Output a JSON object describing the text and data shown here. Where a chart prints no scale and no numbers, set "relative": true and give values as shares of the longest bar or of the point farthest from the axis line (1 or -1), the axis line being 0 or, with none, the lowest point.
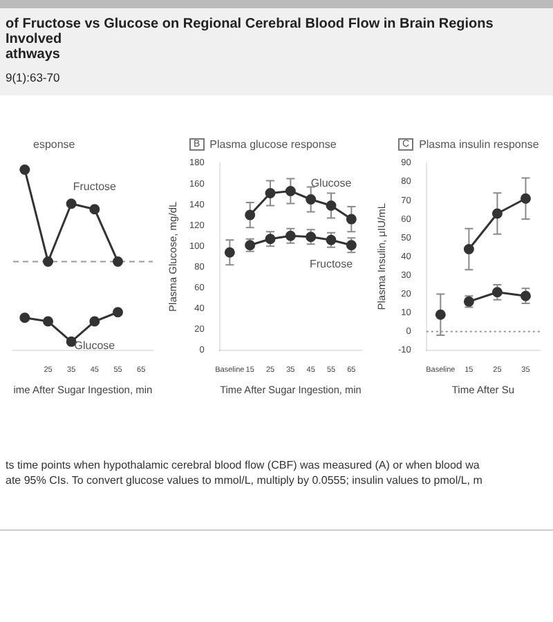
{
  "chart_data": [
    {
      "type": "other",
      "annotations": [
        "of Fructose vs Glucose on Regional Cerebral Blood Flow in Brain Regions Involved",
        "athways",
        "9(1):63-70",
        "ts time points when hypothalamic cerebral blood flow (CBF) was measured (A) or when blood wa",
        "ate 95% CIs. To convert glucose values to mmol/L, multiply by 0.0555; insulin values to pmol/L, m"
      ]
    },
    {
      "type": "line",
      "title": "esponse",
      "xlabel": "ime After Sugar Ingestion, min",
      "relative": true,
      "categories": [
        null,
        "25",
        "35",
        "45",
        "55",
        "65"
      ],
      "marker": "circle",
      "legend": false,
      "ref_lines": [
        {
          "axis": "y",
          "value": 0,
          "line_style": "dashed",
          "color": "#999999"
        }
      ],
      "series": [
        {
          "name": "Fructose",
          "color": "#333333",
          "values": [
            1,
            0,
            0.63,
            0.57,
            0,
            null
          ]
        },
        {
          "name": "Glucose",
          "color": "#333333",
          "values": [
            -0.61,
            -0.65,
            -0.87,
            -0.65,
            -0.55,
            null
          ]
        }
      ]
    },
    {
      "type": "line",
      "subtitle": "B",
      "title": "Plasma glucose response",
      "ylabel": "Plasma Glucose, mg/dL",
      "xlabel": "Time After Sugar Ingestion, min",
      "categories": [
        "Baseline",
        "15",
        "25",
        "35",
        "45",
        "55",
        "65"
      ],
      "ylim": [
        0,
        180
      ],
      "yticks": [
        0,
        20,
        40,
        60,
        80,
        100,
        120,
        140,
        160,
        180
      ],
      "marker": "circle",
      "legend": false,
      "series": [
        {
          "color": "#333333",
          "values": [
            94,
            null,
            null,
            null,
            null,
            null,
            null
          ],
          "errors": [
            12,
            null,
            null,
            null,
            null,
            null,
            null
          ]
        },
        {
          "name": "Glucose",
          "color": "#333333",
          "values": [
            null,
            130,
            151,
            153,
            145,
            139,
            126
          ],
          "errors": [
            null,
            12,
            12,
            12,
            12,
            12,
            12
          ]
        },
        {
          "name": "Fructose",
          "color": "#333333",
          "values": [
            null,
            101,
            107,
            110,
            109,
            106,
            101
          ],
          "errors": [
            null,
            6,
            7,
            7,
            7,
            7,
            7
          ]
        }
      ]
    },
    {
      "type": "line",
      "subtitle": "C",
      "title": "Plasma insulin response",
      "ylabel": "Plasma Insulin, μIU/mL",
      "xlabel": "Time After Su",
      "categories": [
        "Baseline",
        "15",
        "25",
        "35"
      ],
      "ylim": [
        -10,
        90
      ],
      "yticks": [
        -10,
        0,
        10,
        20,
        30,
        40,
        50,
        60,
        70,
        80,
        90
      ],
      "marker": "circle",
      "legend": false,
      "ref_lines": [
        {
          "axis": "y",
          "value": 0,
          "line_style": "dotted",
          "color": "#999999"
        }
      ],
      "series": [
        {
          "color": "#333333",
          "values": [
            9,
            null,
            null,
            null
          ],
          "errors": [
            11,
            null,
            null,
            null
          ]
        },
        {
          "color": "#333333",
          "values": [
            null,
            44,
            63,
            71
          ],
          "errors": [
            null,
            11,
            11,
            11
          ]
        },
        {
          "color": "#333333",
          "values": [
            null,
            16,
            21,
            19
          ],
          "errors": [
            null,
            3,
            4,
            4
          ]
        }
      ]
    }
  ]
}
